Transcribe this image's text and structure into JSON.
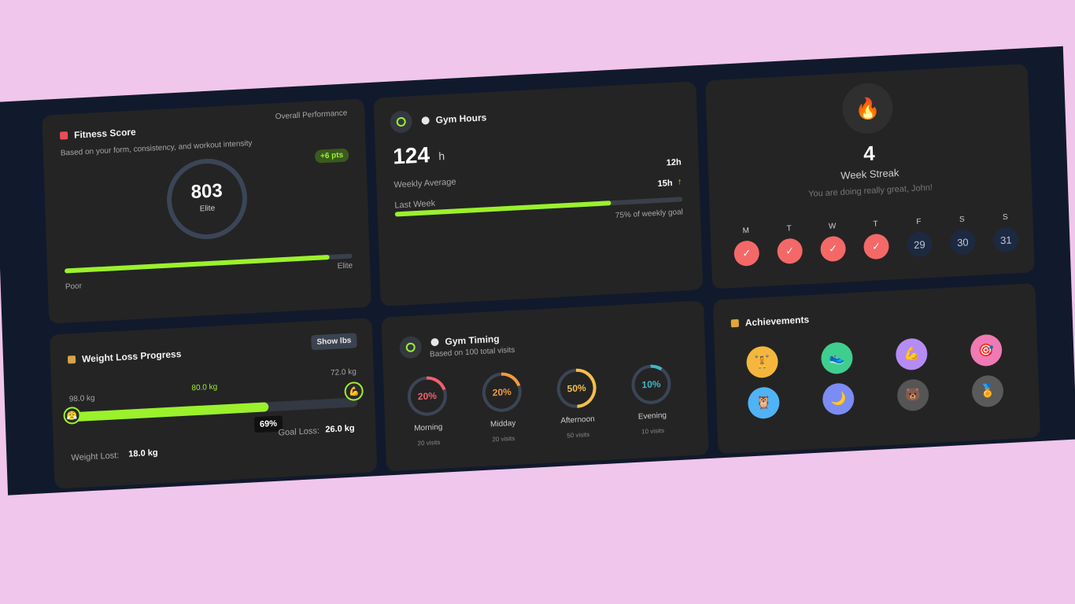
{
  "fitness": {
    "title": "Fitness Score",
    "overall": "Overall Performance",
    "subtitle": "Based on your form, consistency, and workout intensity",
    "delta": "+6 pts",
    "score": "803",
    "level": "Elite",
    "scale_low": "Poor",
    "scale_high": "Elite",
    "progress": 0.92
  },
  "gym_hours": {
    "title": "Gym Hours",
    "total": "124",
    "unit": "h",
    "weekly_avg_label": "Weekly Average",
    "weekly_avg_value": "12h",
    "last_week_label": "Last Week",
    "last_week_value": "15h",
    "trend_arrow": "↑",
    "goal_text": "75% of weekly goal",
    "goal_progress": 0.75
  },
  "streak": {
    "count": "4",
    "label": "Week Streak",
    "message": "You are doing really great, John!",
    "check": "✓",
    "days": [
      {
        "label": "M",
        "done": true,
        "date": ""
      },
      {
        "label": "T",
        "done": true,
        "date": ""
      },
      {
        "label": "W",
        "done": true,
        "date": ""
      },
      {
        "label": "T",
        "done": true,
        "date": ""
      },
      {
        "label": "F",
        "done": false,
        "date": "29"
      },
      {
        "label": "S",
        "done": false,
        "date": "30"
      },
      {
        "label": "S",
        "done": false,
        "date": "31"
      }
    ]
  },
  "weight": {
    "title": "Weight Loss Progress",
    "toggle": "Show lbs",
    "start": "98.0 kg",
    "current": "80.0 kg",
    "goal": "72.0 kg",
    "percent": "69%",
    "progress": 0.69,
    "lost_label": "Weight Lost:",
    "lost_value": "18.0 kg",
    "goal_loss_label": "Goal Loss:",
    "goal_loss_value": "26.0 kg"
  },
  "timing": {
    "title": "Gym Timing",
    "subtitle": "Based on 100 total visits",
    "slots": [
      {
        "name": "Morning",
        "pct": "20%",
        "value": 0.2,
        "visits": "20 visits",
        "color": "#f0606e"
      },
      {
        "name": "Midday",
        "pct": "20%",
        "value": 0.2,
        "visits": "20 visits",
        "color": "#f39a3c"
      },
      {
        "name": "Afternoon",
        "pct": "50%",
        "value": 0.5,
        "visits": "50 visits",
        "color": "#f5c04a"
      },
      {
        "name": "Evening",
        "pct": "10%",
        "value": 0.1,
        "visits": "10 visits",
        "color": "#3fb6c7"
      }
    ]
  },
  "achievements": {
    "title": "Achievements",
    "badges": [
      {
        "icon": "🏋",
        "color": "#f5b73b"
      },
      {
        "icon": "👟",
        "color": "#3ecf8e"
      },
      {
        "icon": "💪",
        "color": "#b58cf5"
      },
      {
        "icon": "🎯",
        "color": "#f07ab3"
      },
      {
        "icon": "🦉",
        "color": "#4fb3f5"
      },
      {
        "icon": "🌙",
        "color": "#7b8cf5"
      },
      {
        "icon": "🐻",
        "color": "#555555"
      },
      {
        "icon": "🏅",
        "color": "#5a5a5a"
      }
    ]
  },
  "colors": {
    "accent": "#9bf12c",
    "streak_done": "#f46868",
    "card": "#242424",
    "board": "#111a2c"
  }
}
